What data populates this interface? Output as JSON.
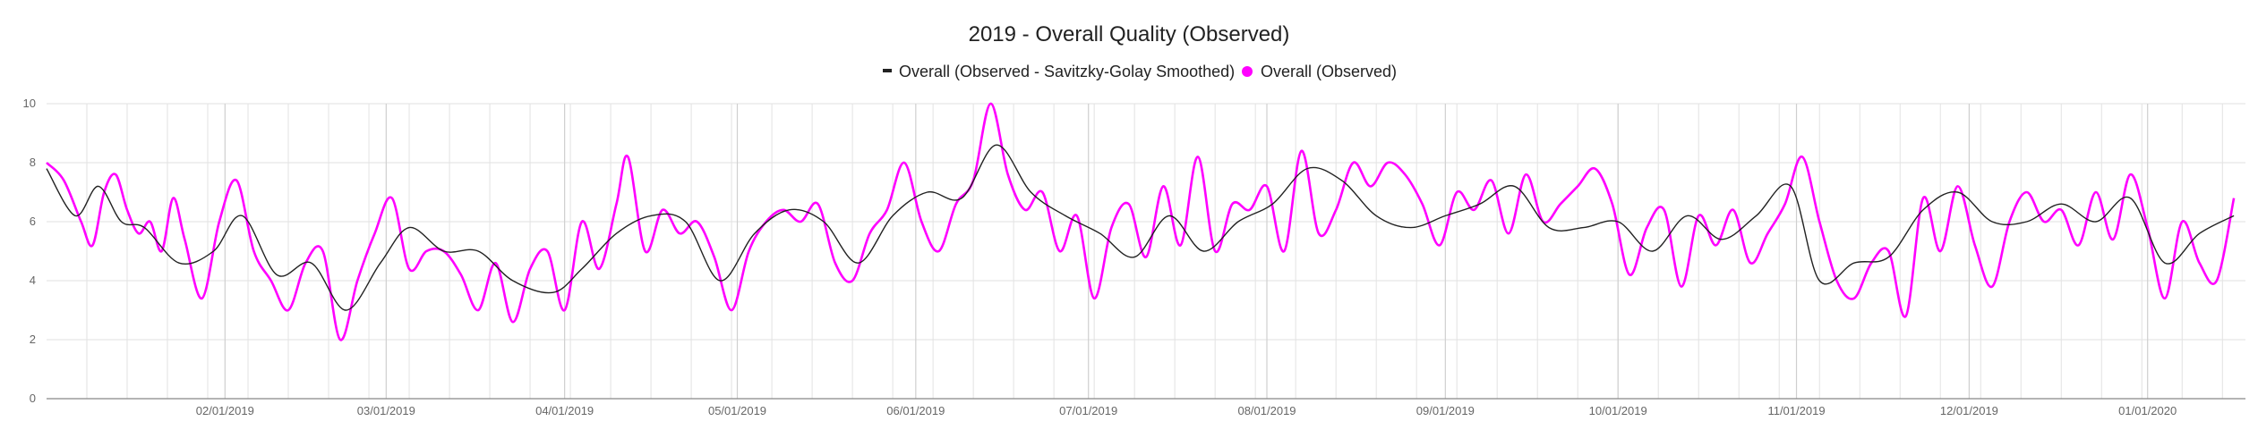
{
  "chart_data": {
    "type": "line",
    "title": "2019 - Overall Quality (Observed)",
    "xlabel": "",
    "ylabel": "",
    "ylim": [
      0,
      10
    ],
    "y_ticks": [
      0,
      2,
      4,
      6,
      8,
      10
    ],
    "x_range": [
      "2019-01-01",
      "2020-01-18"
    ],
    "x_tick_labels": [
      {
        "date": "2019-02-01",
        "label": "02/01/2019"
      },
      {
        "date": "2019-03-01",
        "label": "03/01/2019"
      },
      {
        "date": "2019-04-01",
        "label": "04/01/2019"
      },
      {
        "date": "2019-05-01",
        "label": "05/01/2019"
      },
      {
        "date": "2019-06-01",
        "label": "06/01/2019"
      },
      {
        "date": "2019-07-01",
        "label": "07/01/2019"
      },
      {
        "date": "2019-08-01",
        "label": "08/01/2019"
      },
      {
        "date": "2019-09-01",
        "label": "09/01/2019"
      },
      {
        "date": "2019-10-01",
        "label": "10/01/2019"
      },
      {
        "date": "2019-11-01",
        "label": "11/01/2019"
      },
      {
        "date": "2019-12-01",
        "label": "12/01/2019"
      },
      {
        "date": "2020-01-01",
        "label": "01/01/2020"
      }
    ],
    "grid": true,
    "legend_position": "top-center",
    "series": [
      {
        "name": "Overall (Observed - Savitzky-Golay Smoothed)",
        "color": "#222222",
        "style": "thin-line",
        "points": [
          [
            "2019-01-01",
            7.8
          ],
          [
            "2019-01-06",
            6.2
          ],
          [
            "2019-01-10",
            7.2
          ],
          [
            "2019-01-14",
            6.0
          ],
          [
            "2019-01-18",
            5.8
          ],
          [
            "2019-01-24",
            4.6
          ],
          [
            "2019-01-30",
            5.0
          ],
          [
            "2019-02-04",
            6.2
          ],
          [
            "2019-02-10",
            4.2
          ],
          [
            "2019-02-16",
            4.6
          ],
          [
            "2019-02-22",
            3.0
          ],
          [
            "2019-02-28",
            4.6
          ],
          [
            "2019-03-05",
            5.8
          ],
          [
            "2019-03-11",
            5.0
          ],
          [
            "2019-03-17",
            5.0
          ],
          [
            "2019-03-23",
            4.0
          ],
          [
            "2019-03-30",
            3.6
          ],
          [
            "2019-04-04",
            4.4
          ],
          [
            "2019-04-10",
            5.6
          ],
          [
            "2019-04-16",
            6.2
          ],
          [
            "2019-04-22",
            6.0
          ],
          [
            "2019-04-28",
            4.0
          ],
          [
            "2019-05-04",
            5.6
          ],
          [
            "2019-05-10",
            6.4
          ],
          [
            "2019-05-16",
            6.0
          ],
          [
            "2019-05-22",
            4.6
          ],
          [
            "2019-05-28",
            6.2
          ],
          [
            "2019-06-03",
            7.0
          ],
          [
            "2019-06-09",
            6.8
          ],
          [
            "2019-06-15",
            8.6
          ],
          [
            "2019-06-21",
            7.0
          ],
          [
            "2019-06-27",
            6.2
          ],
          [
            "2019-07-03",
            5.6
          ],
          [
            "2019-07-09",
            4.8
          ],
          [
            "2019-07-15",
            6.2
          ],
          [
            "2019-07-21",
            5.0
          ],
          [
            "2019-07-27",
            6.0
          ],
          [
            "2019-08-02",
            6.6
          ],
          [
            "2019-08-08",
            7.8
          ],
          [
            "2019-08-14",
            7.4
          ],
          [
            "2019-08-20",
            6.2
          ],
          [
            "2019-08-26",
            5.8
          ],
          [
            "2019-09-01",
            6.2
          ],
          [
            "2019-09-07",
            6.6
          ],
          [
            "2019-09-13",
            7.2
          ],
          [
            "2019-09-19",
            5.8
          ],
          [
            "2019-09-25",
            5.8
          ],
          [
            "2019-10-01",
            6.0
          ],
          [
            "2019-10-07",
            5.0
          ],
          [
            "2019-10-13",
            6.2
          ],
          [
            "2019-10-19",
            5.4
          ],
          [
            "2019-10-25",
            6.2
          ],
          [
            "2019-10-31",
            7.2
          ],
          [
            "2019-11-05",
            4.0
          ],
          [
            "2019-11-11",
            4.6
          ],
          [
            "2019-11-17",
            4.8
          ],
          [
            "2019-11-23",
            6.4
          ],
          [
            "2019-11-29",
            7.0
          ],
          [
            "2019-12-05",
            6.0
          ],
          [
            "2019-12-11",
            6.0
          ],
          [
            "2019-12-17",
            6.6
          ],
          [
            "2019-12-23",
            6.0
          ],
          [
            "2019-12-29",
            6.8
          ],
          [
            "2020-01-04",
            4.6
          ],
          [
            "2020-01-10",
            5.6
          ],
          [
            "2020-01-16",
            6.2
          ]
        ]
      },
      {
        "name": "Overall (Observed)",
        "color": "#ff00ff",
        "style": "line",
        "points": [
          [
            "2019-01-01",
            8.0
          ],
          [
            "2019-01-04",
            7.4
          ],
          [
            "2019-01-07",
            6.0
          ],
          [
            "2019-01-09",
            5.2
          ],
          [
            "2019-01-11",
            7.0
          ],
          [
            "2019-01-13",
            7.6
          ],
          [
            "2019-01-15",
            6.4
          ],
          [
            "2019-01-17",
            5.6
          ],
          [
            "2019-01-19",
            6.0
          ],
          [
            "2019-01-21",
            5.0
          ],
          [
            "2019-01-23",
            6.8
          ],
          [
            "2019-01-25",
            5.4
          ],
          [
            "2019-01-28",
            3.4
          ],
          [
            "2019-01-31",
            6.0
          ],
          [
            "2019-02-03",
            7.4
          ],
          [
            "2019-02-06",
            5.0
          ],
          [
            "2019-02-09",
            4.0
          ],
          [
            "2019-02-12",
            3.0
          ],
          [
            "2019-02-15",
            4.6
          ],
          [
            "2019-02-18",
            5.0
          ],
          [
            "2019-02-21",
            2.0
          ],
          [
            "2019-02-24",
            4.0
          ],
          [
            "2019-02-27",
            5.6
          ],
          [
            "2019-03-02",
            6.8
          ],
          [
            "2019-03-05",
            4.4
          ],
          [
            "2019-03-08",
            5.0
          ],
          [
            "2019-03-11",
            5.0
          ],
          [
            "2019-03-14",
            4.2
          ],
          [
            "2019-03-17",
            3.0
          ],
          [
            "2019-03-20",
            4.6
          ],
          [
            "2019-03-23",
            2.6
          ],
          [
            "2019-03-26",
            4.4
          ],
          [
            "2019-03-29",
            5.0
          ],
          [
            "2019-04-01",
            3.0
          ],
          [
            "2019-04-04",
            6.0
          ],
          [
            "2019-04-07",
            4.4
          ],
          [
            "2019-04-10",
            6.6
          ],
          [
            "2019-04-12",
            8.2
          ],
          [
            "2019-04-15",
            5.0
          ],
          [
            "2019-04-18",
            6.4
          ],
          [
            "2019-04-21",
            5.6
          ],
          [
            "2019-04-24",
            6.0
          ],
          [
            "2019-04-27",
            4.8
          ],
          [
            "2019-04-30",
            3.0
          ],
          [
            "2019-05-03",
            5.0
          ],
          [
            "2019-05-06",
            6.0
          ],
          [
            "2019-05-09",
            6.4
          ],
          [
            "2019-05-12",
            6.0
          ],
          [
            "2019-05-15",
            6.6
          ],
          [
            "2019-05-18",
            4.6
          ],
          [
            "2019-05-21",
            4.0
          ],
          [
            "2019-05-24",
            5.6
          ],
          [
            "2019-05-27",
            6.4
          ],
          [
            "2019-05-30",
            8.0
          ],
          [
            "2019-06-02",
            6.0
          ],
          [
            "2019-06-05",
            5.0
          ],
          [
            "2019-06-08",
            6.6
          ],
          [
            "2019-06-11",
            7.4
          ],
          [
            "2019-06-14",
            10.0
          ],
          [
            "2019-06-17",
            7.6
          ],
          [
            "2019-06-20",
            6.4
          ],
          [
            "2019-06-23",
            7.0
          ],
          [
            "2019-06-26",
            5.0
          ],
          [
            "2019-06-29",
            6.2
          ],
          [
            "2019-07-02",
            3.4
          ],
          [
            "2019-07-05",
            5.8
          ],
          [
            "2019-07-08",
            6.6
          ],
          [
            "2019-07-11",
            4.8
          ],
          [
            "2019-07-14",
            7.2
          ],
          [
            "2019-07-17",
            5.2
          ],
          [
            "2019-07-20",
            8.2
          ],
          [
            "2019-07-23",
            5.0
          ],
          [
            "2019-07-26",
            6.6
          ],
          [
            "2019-07-29",
            6.4
          ],
          [
            "2019-08-01",
            7.2
          ],
          [
            "2019-08-04",
            5.0
          ],
          [
            "2019-08-07",
            8.4
          ],
          [
            "2019-08-10",
            5.6
          ],
          [
            "2019-08-13",
            6.4
          ],
          [
            "2019-08-16",
            8.0
          ],
          [
            "2019-08-19",
            7.2
          ],
          [
            "2019-08-22",
            8.0
          ],
          [
            "2019-08-25",
            7.6
          ],
          [
            "2019-08-28",
            6.6
          ],
          [
            "2019-08-31",
            5.2
          ],
          [
            "2019-09-03",
            7.0
          ],
          [
            "2019-09-06",
            6.4
          ],
          [
            "2019-09-09",
            7.4
          ],
          [
            "2019-09-12",
            5.6
          ],
          [
            "2019-09-15",
            7.6
          ],
          [
            "2019-09-18",
            6.0
          ],
          [
            "2019-09-21",
            6.6
          ],
          [
            "2019-09-24",
            7.2
          ],
          [
            "2019-09-27",
            7.8
          ],
          [
            "2019-09-30",
            6.6
          ],
          [
            "2019-10-03",
            4.2
          ],
          [
            "2019-10-06",
            5.8
          ],
          [
            "2019-10-09",
            6.4
          ],
          [
            "2019-10-12",
            3.8
          ],
          [
            "2019-10-15",
            6.2
          ],
          [
            "2019-10-18",
            5.2
          ],
          [
            "2019-10-21",
            6.4
          ],
          [
            "2019-10-24",
            4.6
          ],
          [
            "2019-10-27",
            5.6
          ],
          [
            "2019-10-30",
            6.6
          ],
          [
            "2019-11-02",
            8.2
          ],
          [
            "2019-11-05",
            6.0
          ],
          [
            "2019-11-08",
            4.0
          ],
          [
            "2019-11-11",
            3.4
          ],
          [
            "2019-11-14",
            4.6
          ],
          [
            "2019-11-17",
            5.0
          ],
          [
            "2019-11-20",
            2.8
          ],
          [
            "2019-11-23",
            6.8
          ],
          [
            "2019-11-26",
            5.0
          ],
          [
            "2019-11-29",
            7.2
          ],
          [
            "2019-12-02",
            5.2
          ],
          [
            "2019-12-05",
            3.8
          ],
          [
            "2019-12-08",
            6.0
          ],
          [
            "2019-12-11",
            7.0
          ],
          [
            "2019-12-14",
            6.0
          ],
          [
            "2019-12-17",
            6.4
          ],
          [
            "2019-12-20",
            5.2
          ],
          [
            "2019-12-23",
            7.0
          ],
          [
            "2019-12-26",
            5.4
          ],
          [
            "2019-12-29",
            7.6
          ],
          [
            "2020-01-01",
            5.8
          ],
          [
            "2020-01-04",
            3.4
          ],
          [
            "2020-01-07",
            6.0
          ],
          [
            "2020-01-10",
            4.6
          ],
          [
            "2020-01-13",
            4.0
          ],
          [
            "2020-01-16",
            6.8
          ]
        ]
      }
    ]
  }
}
